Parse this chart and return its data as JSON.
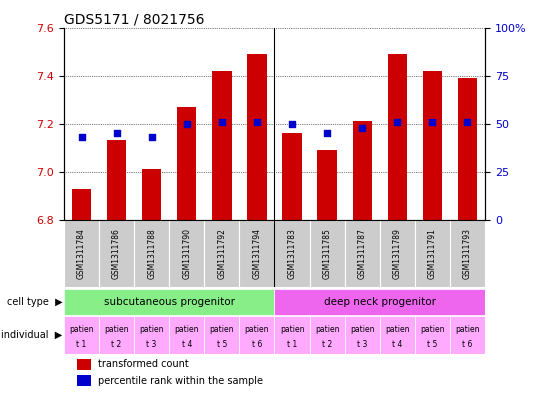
{
  "title": "GDS5171 / 8021756",
  "samples": [
    "GSM1311784",
    "GSM1311786",
    "GSM1311788",
    "GSM1311790",
    "GSM1311792",
    "GSM1311794",
    "GSM1311783",
    "GSM1311785",
    "GSM1311787",
    "GSM1311789",
    "GSM1311791",
    "GSM1311793"
  ],
  "bar_values": [
    6.93,
    7.13,
    7.01,
    7.27,
    7.42,
    7.49,
    7.16,
    7.09,
    7.21,
    7.49,
    7.42,
    7.39
  ],
  "dot_percentiles": [
    43,
    45,
    43,
    50,
    51,
    51,
    50,
    45,
    48,
    51,
    51,
    51
  ],
  "ylim_left": [
    6.8,
    7.6
  ],
  "ylim_right": [
    0,
    100
  ],
  "yticks_left": [
    6.8,
    7.0,
    7.2,
    7.4,
    7.6
  ],
  "yticks_right": [
    0,
    25,
    50,
    75,
    100
  ],
  "bar_color": "#cc0000",
  "dot_color": "#0000cc",
  "bar_bottom": 6.8,
  "tick_label_color_left": "#cc0000",
  "tick_label_color_right": "#0000cc",
  "bg_color": "#ffffff",
  "gsm_label_bg": "#cccccc",
  "cell_type_group1_label": "subcutaneous progenitor",
  "cell_type_group2_label": "deep neck progenitor",
  "cell_type_color1": "#88ee88",
  "cell_type_color2": "#ee66ee",
  "individual_color": "#ffaaff",
  "individual_labels_top": [
    "patien",
    "patien",
    "patien",
    "patien",
    "patien",
    "patien",
    "patien",
    "patien",
    "patien",
    "patien",
    "patien",
    "patien"
  ],
  "individual_labels_bot": [
    "t 1",
    "t 2",
    "t 3",
    "t 4",
    "t 5",
    "t 6",
    "t 1",
    "t 2",
    "t 3",
    "t 4",
    "t 5",
    "t 6"
  ],
  "legend_bar_label": "transformed count",
  "legend_dot_label": "percentile rank within the sample"
}
